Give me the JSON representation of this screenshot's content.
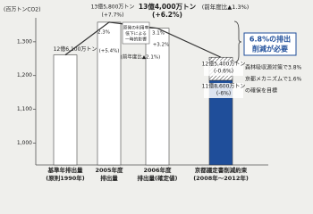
{
  "chart_data": {
    "type": "bar",
    "y_label": "(百万トンCO2)",
    "ylim": [
      935,
      1400
    ],
    "yticks": [
      {
        "value": 1000,
        "label": "1,000"
      },
      {
        "value": 1100,
        "label": "1,100"
      },
      {
        "value": 1200,
        "label": "1,200"
      },
      {
        "value": 1300,
        "label": "1,300"
      }
    ],
    "categories": [
      [
        "基準年排出量",
        "(原則1990年)"
      ],
      [
        "2005年度",
        "排出量"
      ],
      [
        "2006年度",
        "排出量(確定値)"
      ],
      [
        "京都議定書削減約束",
        "(2008年～2012年)"
      ]
    ],
    "values": [
      1261,
      1358,
      1340,
      1186
    ],
    "value_labels": [
      "12億6,100万トン",
      "13億5,800万トン",
      "13億4,000万トン",
      "11億8,600万トン"
    ],
    "value_notes": [
      "(+7.7%)",
      "(+6.2%)",
      "(-6%)"
    ],
    "bar_colors": [
      "#ffffff",
      "#ffffff",
      "#ffffff",
      "#1f4e9a"
    ],
    "year_change": "(前年度比▲1.3%)",
    "kyoto_upper": {
      "value": 1254,
      "label": "12億5,400万トン",
      "note": "(-0.6%)"
    },
    "annotations": [
      "2.3%",
      "(+5.4%)",
      "(前年度比▲2.1%)",
      "3.1%",
      "+3.2%"
    ],
    "box_lines": [
      "原発の利用率",
      "低下による",
      "一時的影響"
    ],
    "callout": [
      "6.8%の排出",
      "削減が必要"
    ],
    "notes": [
      "森林吸収源対策で3.8%",
      "京都メカニズムで1.6%",
      "の確保を目標"
    ]
  }
}
